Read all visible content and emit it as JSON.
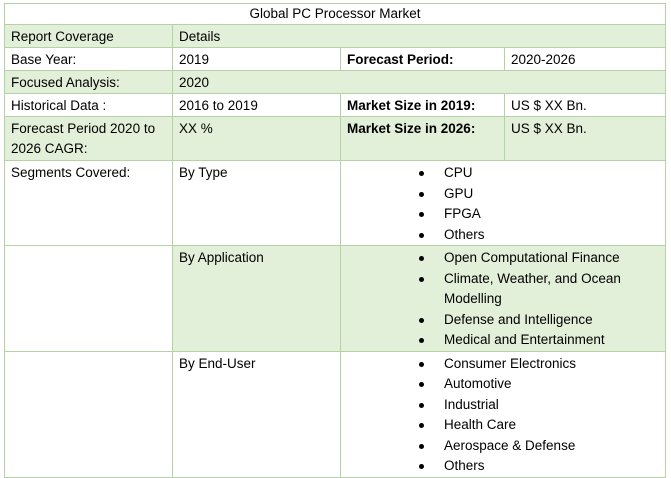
{
  "title": "Global PC Processor Market",
  "header": {
    "col1": "Report Coverage",
    "col2": "Details"
  },
  "base_year": {
    "label": "Base Year:",
    "value": "2019",
    "forecast_label": "Forecast Period:",
    "forecast_value": "2020-2026"
  },
  "focused": {
    "label": "Focused Analysis:",
    "value": "2020"
  },
  "historical": {
    "label": "Historical Data :",
    "value": "2016 to 2019",
    "size_label": "Market Size in 2019:",
    "size_value": "US $ XX Bn."
  },
  "cagr": {
    "label": "Forecast Period 2020 to 2026 CAGR:",
    "value": "XX %",
    "size_label": "Market Size in 2026:",
    "size_value": "US $ XX Bn."
  },
  "segments": {
    "label": "Segments Covered:",
    "by_type": {
      "label": "By Type",
      "items": [
        "CPU",
        "GPU",
        "FPGA",
        "Others"
      ]
    },
    "by_application": {
      "label": "By Application",
      "items": [
        "Open Computational Finance",
        "Climate, Weather, and Ocean Modelling",
        "Defense and Intelligence",
        "Medical and Entertainment"
      ]
    },
    "by_end_user": {
      "label": "By End-User",
      "items": [
        "Consumer Electronics",
        "Automotive",
        "Industrial",
        "Health Care",
        "Aerospace & Defense",
        "Others"
      ]
    }
  }
}
